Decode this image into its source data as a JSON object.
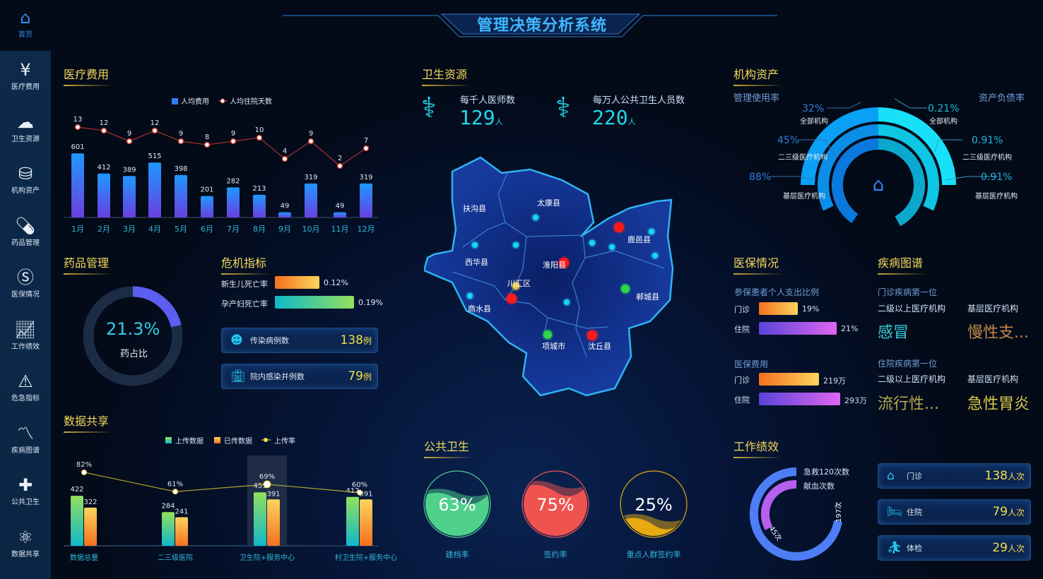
{
  "header": {
    "title": "管理决策分析系统"
  },
  "sidebar": {
    "items": [
      {
        "label": "首页",
        "icon": "home-icon"
      },
      {
        "label": "医疗费用",
        "icon": "house-yuan-icon"
      },
      {
        "label": "卫生资源",
        "icon": "cloud-icon"
      },
      {
        "label": "机构资产",
        "icon": "coin-stack-icon"
      },
      {
        "label": "药品管理",
        "icon": "pill-icon"
      },
      {
        "label": "医保情况",
        "icon": "si-icon"
      },
      {
        "label": "工作绩效",
        "icon": "trend-chart-icon"
      },
      {
        "label": "危急指标",
        "icon": "alarm-icon"
      },
      {
        "label": "疾病图谱",
        "icon": "line-chart-icon"
      },
      {
        "label": "公共卫生",
        "icon": "medical-kit-icon"
      },
      {
        "label": "数据共享",
        "icon": "atom-icon"
      }
    ]
  },
  "sections": {
    "medical_cost": "医疗费用",
    "health_resources": "卫生资源",
    "assets": "机构资产",
    "drugs": "药品管理",
    "crisis": "危机指标",
    "insurance": "医保情况",
    "disease": "疾病图谱",
    "data_share": "数据共享",
    "public_health": "公共卫生",
    "performance": "工作绩效"
  },
  "chart_data": [
    {
      "type": "bar+line",
      "categories": [
        "1月",
        "2月",
        "3月",
        "4月",
        "5月",
        "6月",
        "7月",
        "8月",
        "9月",
        "10月",
        "11月",
        "12月"
      ],
      "series": [
        {
          "name": "人均费用",
          "type": "bar",
          "values": [
            601,
            412,
            389,
            515,
            398,
            201,
            282,
            213,
            49,
            319,
            49,
            319
          ]
        },
        {
          "name": "人均住院天数",
          "type": "line",
          "values": [
            13,
            12,
            9,
            12,
            9,
            8,
            9,
            10,
            4,
            9,
            2,
            7
          ]
        }
      ],
      "legend": "top-center",
      "grid": false
    },
    {
      "type": "bar+line",
      "categories": [
        "数据总量",
        "二三级医院",
        "卫生院+服务中心",
        "村卫生院+服务中心"
      ],
      "series": [
        {
          "name": "上传数据",
          "type": "bar",
          "values": [
            422,
            284,
            451,
            412
          ]
        },
        {
          "name": "已传数据",
          "type": "bar",
          "values": [
            322,
            241,
            391,
            391
          ]
        },
        {
          "name": "上传率",
          "type": "line",
          "values": [
            82,
            61,
            69,
            60
          ],
          "labels": [
            "82%",
            "61%",
            "69%",
            "60%"
          ]
        }
      ],
      "highlighted_category": "卫生院+服务中心",
      "legend": "top-center",
      "grid": false
    }
  ],
  "drugs": {
    "value": "21.3%",
    "fraction": 0.213,
    "label": "药占比"
  },
  "crisis": {
    "rates": [
      {
        "label": "新生儿死亡率",
        "value": "0.12%",
        "fill": 0.45
      },
      {
        "label": "孕产妇死亡率",
        "value": "0.19%",
        "fill": 0.8
      }
    ],
    "cards": [
      {
        "label": "传染病例数",
        "value": "138",
        "unit": "例",
        "icon": "virus-icon"
      },
      {
        "label": "院内感染并例数",
        "value": "79",
        "unit": "例",
        "icon": "hospital-icon"
      }
    ]
  },
  "resources": {
    "stats": [
      {
        "label": "每千人医师数",
        "value": "129",
        "unit": "人",
        "icon": "doctor-icon"
      },
      {
        "label": "每万人公共卫生人员数",
        "value": "220",
        "unit": "人",
        "icon": "nurse-icon"
      }
    ],
    "map": {
      "regions": [
        "扶沟县",
        "太康县",
        "西华县",
        "淮阳县",
        "川汇区",
        "商水县",
        "鹿邑县",
        "郸城县",
        "项城市",
        "沈丘县"
      ]
    }
  },
  "assets": {
    "left_title": "管理使用率",
    "right_title": "资产负债率",
    "left": [
      {
        "value": "32%",
        "label": "全部机构"
      },
      {
        "value": "45%",
        "label": "二三级医疗机构"
      },
      {
        "value": "88%",
        "label": "基层医疗机构"
      }
    ],
    "right": [
      {
        "value": "0.21%",
        "label": "全部机构"
      },
      {
        "value": "0.91%",
        "label": "二三级医疗机构"
      },
      {
        "value": "0.91%",
        "label": "基层医疗机构"
      }
    ]
  },
  "insurance": {
    "ratio_title": "参保患者个人支出比例",
    "ratio": [
      {
        "label": "门诊",
        "value": "19%",
        "fill": 0.19
      },
      {
        "label": "住院",
        "value": "21%",
        "fill": 0.21
      }
    ],
    "cost_title": "医保费用",
    "cost": [
      {
        "label": "门诊",
        "value": "219万",
        "fill": 219
      },
      {
        "label": "住院",
        "value": "293万",
        "fill": 293
      }
    ]
  },
  "disease": {
    "outpatient_title": "门诊疾病第一位",
    "inpatient_title": "住院疾病第一位",
    "col1": "二级以上医疗机构",
    "col2": "基层医疗机构",
    "outpatient": [
      "感冒",
      "慢性支..."
    ],
    "inpatient": [
      "流行性...",
      "急性胃炎"
    ]
  },
  "public_health": [
    {
      "value": "63%",
      "fraction": 0.63,
      "label": "建档率",
      "color": "#4fd18b"
    },
    {
      "value": "75%",
      "fraction": 0.75,
      "label": "签约率",
      "color": "#ef5350"
    },
    {
      "value": "25%",
      "fraction": 0.25,
      "label": "重点人群签约率",
      "color": "#e8a911"
    }
  ],
  "performance": {
    "rings": [
      {
        "label": "急救120次数",
        "value": "197次"
      },
      {
        "label": "献血次数",
        "value": "45次"
      }
    ],
    "cards": [
      {
        "label": "门诊",
        "value": "138",
        "unit": "人次",
        "icon": "clinic-icon"
      },
      {
        "label": "住院",
        "value": "79",
        "unit": "人次",
        "icon": "bed-icon"
      },
      {
        "label": "体检",
        "value": "29",
        "unit": "人次",
        "icon": "checkup-icon"
      }
    ]
  }
}
